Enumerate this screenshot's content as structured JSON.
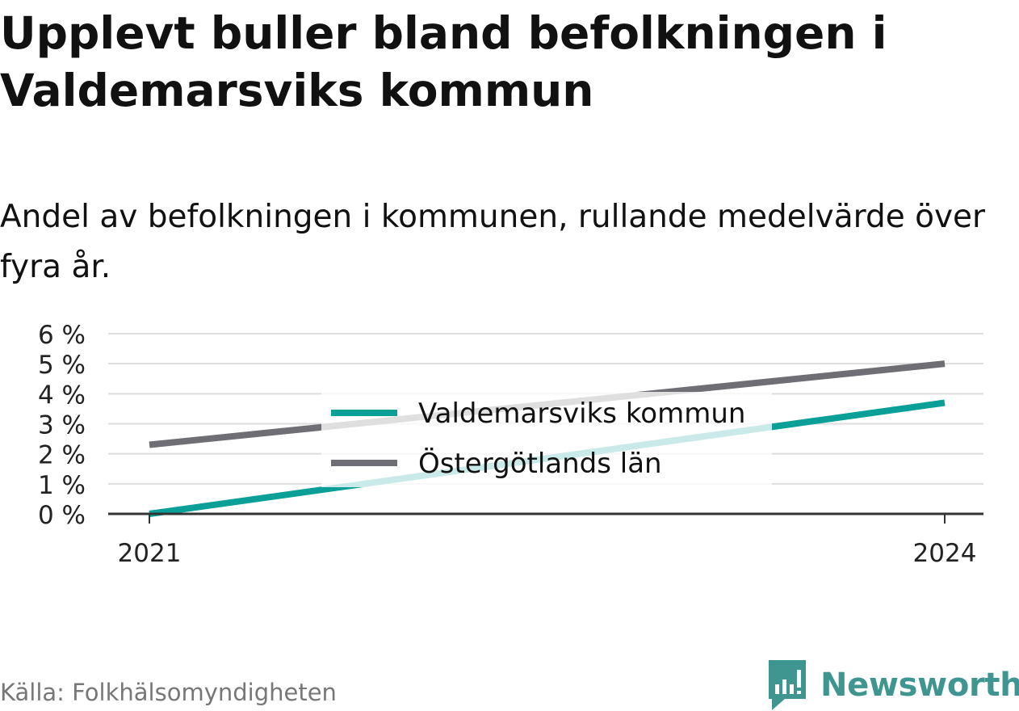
{
  "header": {
    "title": "Upplevt buller bland befolkningen i Valdemarsviks kommun",
    "subtitle": "Andel av befolkningen i kommunen, rullande medelvärde över fyra år."
  },
  "footer": {
    "source": "Källa: Folkhälsomyndigheten",
    "brand": "Newsworthy"
  },
  "colors": {
    "kommun": "#0aa098",
    "lan": "#6f6e74",
    "grid": "#dddddd",
    "axis": "#333333",
    "brand": "#3f9590"
  },
  "chart_data": {
    "type": "line",
    "x": [
      "2021",
      "2024"
    ],
    "xticks": [
      "2021",
      "2024"
    ],
    "yticks": [
      "0 %",
      "1 %",
      "2 %",
      "3 %",
      "4 %",
      "5 %",
      "6 %"
    ],
    "ylim": [
      0,
      6
    ],
    "grid": true,
    "legend": "center",
    "series": [
      {
        "name": "Valdemarsviks kommun",
        "values": [
          0.0,
          3.7
        ],
        "color": "#0aa098"
      },
      {
        "name": "Östergötlands län",
        "values": [
          2.3,
          5.0
        ],
        "color": "#6f6e74"
      }
    ]
  }
}
